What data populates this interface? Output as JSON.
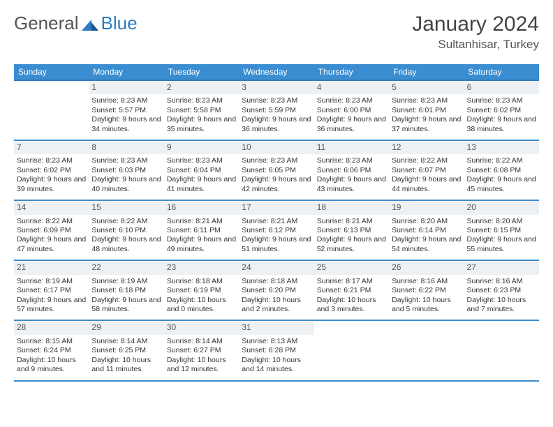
{
  "brand": {
    "part1": "General",
    "part2": "Blue"
  },
  "title": "January 2024",
  "location": "Sultanhisar, Turkey",
  "colors": {
    "header_bg": "#3a8dd0",
    "header_border": "#2d7cc0",
    "row_border": "#3a8dd0",
    "daynum_bg": "#eef1f4",
    "text": "#333333",
    "logo_blue": "#2d7cc0"
  },
  "day_names": [
    "Sunday",
    "Monday",
    "Tuesday",
    "Wednesday",
    "Thursday",
    "Friday",
    "Saturday"
  ],
  "weeks": [
    [
      {
        "n": "",
        "sr": "",
        "ss": "",
        "dl": ""
      },
      {
        "n": "1",
        "sr": "8:23 AM",
        "ss": "5:57 PM",
        "dl": "9 hours and 34 minutes."
      },
      {
        "n": "2",
        "sr": "8:23 AM",
        "ss": "5:58 PM",
        "dl": "9 hours and 35 minutes."
      },
      {
        "n": "3",
        "sr": "8:23 AM",
        "ss": "5:59 PM",
        "dl": "9 hours and 36 minutes."
      },
      {
        "n": "4",
        "sr": "8:23 AM",
        "ss": "6:00 PM",
        "dl": "9 hours and 36 minutes."
      },
      {
        "n": "5",
        "sr": "8:23 AM",
        "ss": "6:01 PM",
        "dl": "9 hours and 37 minutes."
      },
      {
        "n": "6",
        "sr": "8:23 AM",
        "ss": "6:02 PM",
        "dl": "9 hours and 38 minutes."
      }
    ],
    [
      {
        "n": "7",
        "sr": "8:23 AM",
        "ss": "6:02 PM",
        "dl": "9 hours and 39 minutes."
      },
      {
        "n": "8",
        "sr": "8:23 AM",
        "ss": "6:03 PM",
        "dl": "9 hours and 40 minutes."
      },
      {
        "n": "9",
        "sr": "8:23 AM",
        "ss": "6:04 PM",
        "dl": "9 hours and 41 minutes."
      },
      {
        "n": "10",
        "sr": "8:23 AM",
        "ss": "6:05 PM",
        "dl": "9 hours and 42 minutes."
      },
      {
        "n": "11",
        "sr": "8:23 AM",
        "ss": "6:06 PM",
        "dl": "9 hours and 43 minutes."
      },
      {
        "n": "12",
        "sr": "8:22 AM",
        "ss": "6:07 PM",
        "dl": "9 hours and 44 minutes."
      },
      {
        "n": "13",
        "sr": "8:22 AM",
        "ss": "6:08 PM",
        "dl": "9 hours and 45 minutes."
      }
    ],
    [
      {
        "n": "14",
        "sr": "8:22 AM",
        "ss": "6:09 PM",
        "dl": "9 hours and 47 minutes."
      },
      {
        "n": "15",
        "sr": "8:22 AM",
        "ss": "6:10 PM",
        "dl": "9 hours and 48 minutes."
      },
      {
        "n": "16",
        "sr": "8:21 AM",
        "ss": "6:11 PM",
        "dl": "9 hours and 49 minutes."
      },
      {
        "n": "17",
        "sr": "8:21 AM",
        "ss": "6:12 PM",
        "dl": "9 hours and 51 minutes."
      },
      {
        "n": "18",
        "sr": "8:21 AM",
        "ss": "6:13 PM",
        "dl": "9 hours and 52 minutes."
      },
      {
        "n": "19",
        "sr": "8:20 AM",
        "ss": "6:14 PM",
        "dl": "9 hours and 54 minutes."
      },
      {
        "n": "20",
        "sr": "8:20 AM",
        "ss": "6:15 PM",
        "dl": "9 hours and 55 minutes."
      }
    ],
    [
      {
        "n": "21",
        "sr": "8:19 AM",
        "ss": "6:17 PM",
        "dl": "9 hours and 57 minutes."
      },
      {
        "n": "22",
        "sr": "8:19 AM",
        "ss": "6:18 PM",
        "dl": "9 hours and 58 minutes."
      },
      {
        "n": "23",
        "sr": "8:18 AM",
        "ss": "6:19 PM",
        "dl": "10 hours and 0 minutes."
      },
      {
        "n": "24",
        "sr": "8:18 AM",
        "ss": "6:20 PM",
        "dl": "10 hours and 2 minutes."
      },
      {
        "n": "25",
        "sr": "8:17 AM",
        "ss": "6:21 PM",
        "dl": "10 hours and 3 minutes."
      },
      {
        "n": "26",
        "sr": "8:16 AM",
        "ss": "6:22 PM",
        "dl": "10 hours and 5 minutes."
      },
      {
        "n": "27",
        "sr": "8:16 AM",
        "ss": "6:23 PM",
        "dl": "10 hours and 7 minutes."
      }
    ],
    [
      {
        "n": "28",
        "sr": "8:15 AM",
        "ss": "6:24 PM",
        "dl": "10 hours and 9 minutes."
      },
      {
        "n": "29",
        "sr": "8:14 AM",
        "ss": "6:25 PM",
        "dl": "10 hours and 11 minutes."
      },
      {
        "n": "30",
        "sr": "8:14 AM",
        "ss": "6:27 PM",
        "dl": "10 hours and 12 minutes."
      },
      {
        "n": "31",
        "sr": "8:13 AM",
        "ss": "6:28 PM",
        "dl": "10 hours and 14 minutes."
      },
      {
        "n": "",
        "sr": "",
        "ss": "",
        "dl": ""
      },
      {
        "n": "",
        "sr": "",
        "ss": "",
        "dl": ""
      },
      {
        "n": "",
        "sr": "",
        "ss": "",
        "dl": ""
      }
    ]
  ],
  "labels": {
    "sunrise": "Sunrise:",
    "sunset": "Sunset:",
    "daylight": "Daylight:"
  }
}
